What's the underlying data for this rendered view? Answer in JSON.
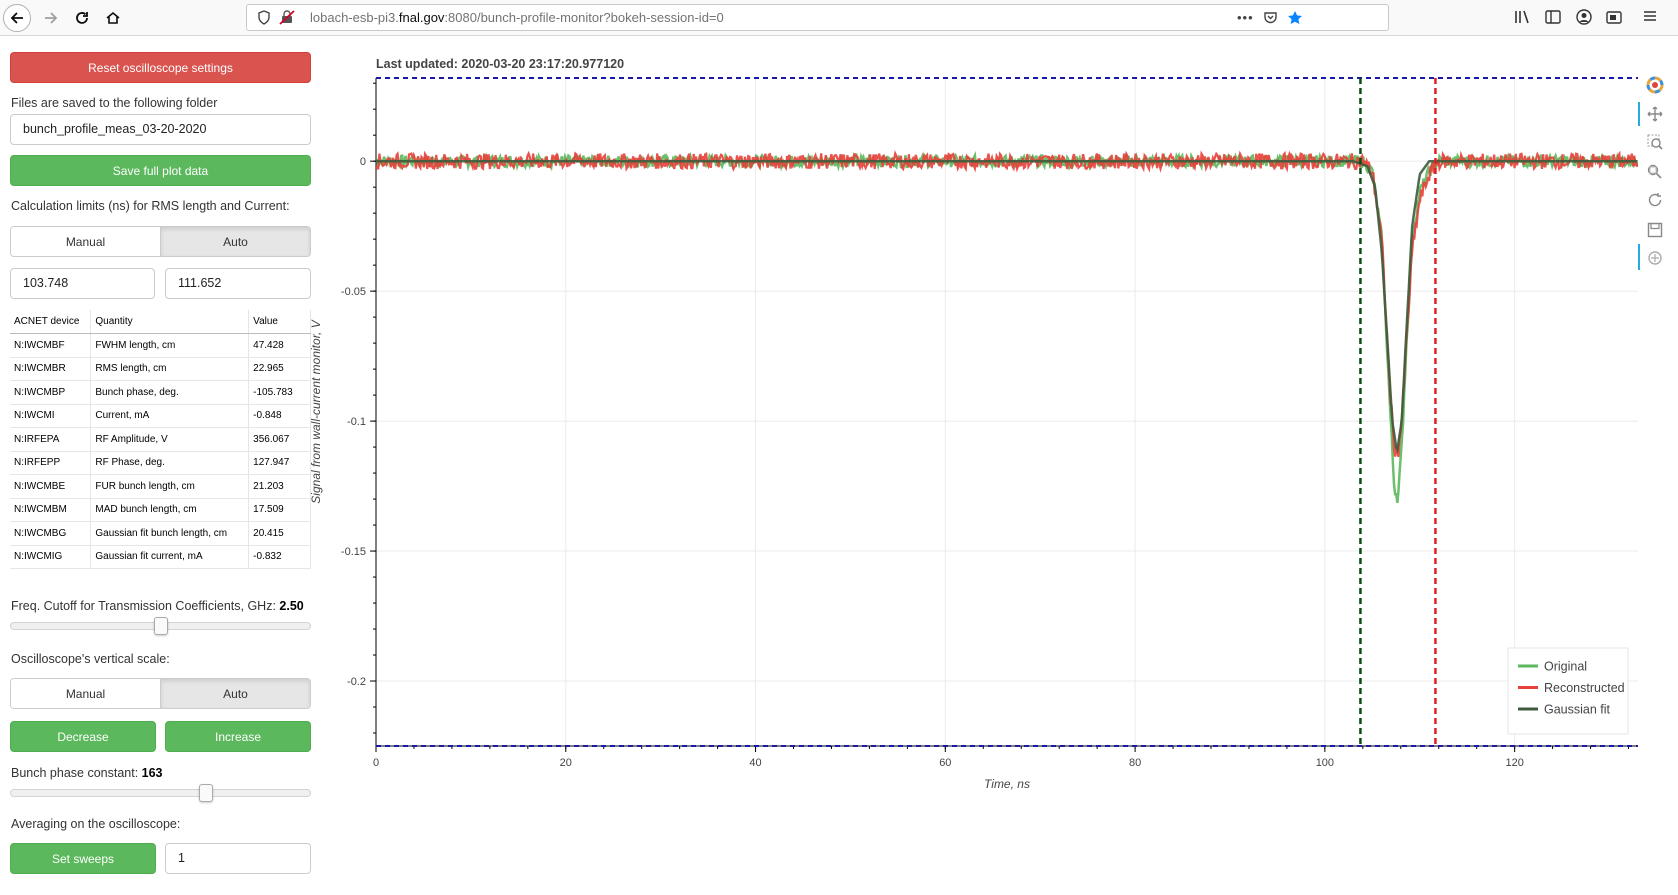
{
  "browser": {
    "url_host_prefix": "lobach-esb-pi3.",
    "url_host": "fnal.gov",
    "url_rest": ":8080/bunch-profile-monitor?bokeh-session-id=0",
    "more_label": "•••"
  },
  "panel": {
    "reset_label": "Reset oscilloscope settings",
    "folder_label": "Files are saved to the following folder",
    "folder_value": "bunch_profile_meas_03-20-2020",
    "save_label": "Save full plot data",
    "calc_limits_label": "Calculation limits (ns) for RMS length and Current:",
    "limits_toggle": {
      "manual": "Manual",
      "auto": "Auto",
      "active": "auto"
    },
    "limit_low": "103.748",
    "limit_high": "111.652",
    "table": {
      "headers": [
        "ACNET device",
        "Quantity",
        "Value"
      ],
      "rows": [
        [
          "N:IWCMBF",
          "FWHM length, cm",
          "47.428"
        ],
        [
          "N:IWCMBR",
          "RMS length, cm",
          "22.965"
        ],
        [
          "N:IWCMBP",
          "Bunch phase, deg.",
          "-105.783"
        ],
        [
          "N:IWCMI",
          "Current, mA",
          "-0.848"
        ],
        [
          "N:IRFEPA",
          "RF Amplitude, V",
          "356.067"
        ],
        [
          "N:IRFEPP",
          "RF Phase, deg.",
          "127.947"
        ],
        [
          "N:IWCMBE",
          "FUR bunch length, cm",
          "21.203"
        ],
        [
          "N:IWCMBM",
          "MAD bunch length, cm",
          "17.509"
        ],
        [
          "N:IWCMBG",
          "Gaussian fit bunch length, cm",
          "20.415"
        ],
        [
          "N:IWCMIG",
          "Gaussian fit current, mA",
          "-0.832"
        ]
      ]
    },
    "freq_label": "Freq. Cutoff for Transmission Coefficients, GHz: ",
    "freq_value": "2.50",
    "freq_slider_fraction": 0.5,
    "vscale_label": "Oscilloscope's vertical scale:",
    "vscale_toggle": {
      "manual": "Manual",
      "auto": "Auto",
      "active": "auto"
    },
    "decrease_label": "Decrease",
    "increase_label": "Increase",
    "phase_label": "Bunch phase constant: ",
    "phase_value": "163",
    "phase_slider_fraction": 0.66,
    "averaging_label": "Averaging on the oscilloscope:",
    "sweeps_label": "Set sweeps",
    "sweeps_value": "1"
  },
  "plot": {
    "last_updated_label": "Last updated: 2020-03-20 23:17:20.977120",
    "toolbar_icons": [
      "bokeh-logo-icon",
      "pan-icon",
      "box-zoom-icon",
      "wheel-zoom-icon",
      "reset-icon",
      "save-icon",
      "hover-icon"
    ]
  },
  "chart_data": {
    "type": "line",
    "title": "Last updated: 2020-03-20 23:17:20.977120",
    "xlabel": "Time, ns",
    "ylabel": "Signal from wall-current monitor,  V",
    "xlim": [
      0,
      133
    ],
    "ylim": [
      -0.225,
      0.032
    ],
    "x_ticks": [
      0,
      20,
      40,
      60,
      80,
      100,
      120
    ],
    "y_ticks": [
      0,
      -0.05,
      -0.1,
      -0.15,
      -0.2
    ],
    "y_tick_labels": [
      "0",
      "-0.05",
      "-0.1",
      "-0.15",
      "-0.2"
    ],
    "grid": true,
    "legend_position": "bottom-right",
    "series": [
      {
        "name": "Original",
        "color": "#5cb85c",
        "x": [
          0,
          102,
          104,
          105,
          106,
          106.8,
          107.3,
          107.7,
          108.1,
          108.6,
          109.2,
          110,
          111,
          112,
          133
        ],
        "y": [
          0,
          0,
          0,
          -0.004,
          -0.03,
          -0.09,
          -0.125,
          -0.13,
          -0.11,
          -0.07,
          -0.03,
          -0.012,
          -0.004,
          0,
          0
        ]
      },
      {
        "name": "Reconstructed",
        "color": "#e8403a",
        "x": [
          0,
          102,
          104,
          105,
          106,
          106.8,
          107.3,
          107.7,
          108.1,
          108.6,
          109.2,
          110,
          111,
          112,
          133
        ],
        "y": [
          0,
          0,
          0,
          -0.004,
          -0.03,
          -0.085,
          -0.11,
          -0.113,
          -0.1,
          -0.07,
          -0.035,
          -0.015,
          -0.005,
          0,
          0
        ]
      },
      {
        "name": "Gaussian fit",
        "color": "#3d5c3d",
        "x": [
          0,
          103,
          104.5,
          105.3,
          106,
          106.6,
          107.1,
          107.6,
          108.1,
          108.6,
          109.2,
          110,
          111,
          133
        ],
        "y": [
          0,
          0,
          -0.002,
          -0.01,
          -0.035,
          -0.07,
          -0.1,
          -0.112,
          -0.1,
          -0.065,
          -0.025,
          -0.005,
          0,
          0
        ]
      }
    ],
    "vertical_lines": [
      {
        "x": 103.748,
        "color": "#0a4d14",
        "style": "dashed"
      },
      {
        "x": 111.652,
        "color": "#e02020",
        "style": "dashed"
      }
    ],
    "horizontal_lines": [
      {
        "y": 0.032,
        "color": "#1a1aa8",
        "style": "dashed"
      },
      {
        "y": -0.225,
        "color": "#1a1aa8",
        "style": "dashed"
      }
    ]
  }
}
